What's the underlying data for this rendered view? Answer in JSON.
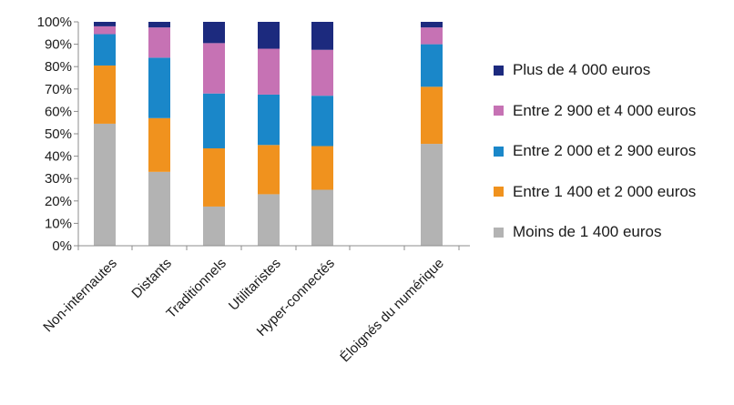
{
  "chart_data": {
    "type": "bar",
    "stacked": true,
    "categories": [
      "Non-internautes",
      "Distants",
      "Traditionnels",
      "Utilitaristes",
      "Hyper-connectés",
      "",
      "Éloignés du numérique"
    ],
    "series": [
      {
        "name": "Moins de 1 400 euros",
        "color": "#b3b3b3",
        "values": [
          54.5,
          33,
          17.5,
          23,
          25,
          null,
          45.5
        ]
      },
      {
        "name": "Entre 1 400 et 2 000 euros",
        "color": "#f0921e",
        "values": [
          26,
          24,
          26,
          22,
          19.5,
          null,
          25.5
        ]
      },
      {
        "name": "Entre 2 000 et 2 900 euros",
        "color": "#1a87c9",
        "values": [
          14,
          27,
          24.5,
          22.5,
          22.5,
          null,
          19
        ]
      },
      {
        "name": "Entre 2 900 et 4 000 euros",
        "color": "#c672b4",
        "values": [
          3.5,
          13.5,
          22.5,
          20.5,
          20.5,
          null,
          7.5
        ]
      },
      {
        "name": "Plus de 4 000 euros",
        "color": "#1c2a7e",
        "values": [
          2,
          2.5,
          9.5,
          12,
          12.5,
          null,
          2.5
        ]
      }
    ],
    "y_ticks": [
      "0%",
      "10%",
      "20%",
      "30%",
      "40%",
      "50%",
      "60%",
      "70%",
      "80%",
      "90%",
      "100%"
    ],
    "ylim": [
      0,
      100
    ],
    "grid": false,
    "legend_position": "right",
    "legend_order": [
      "Plus de 4 000 euros",
      "Entre 2 900 et 4 000 euros",
      "Entre 2 000 et 2 900 euros",
      "Entre 1 400 et 2 000 euros",
      "Moins de 1 400 euros"
    ]
  }
}
